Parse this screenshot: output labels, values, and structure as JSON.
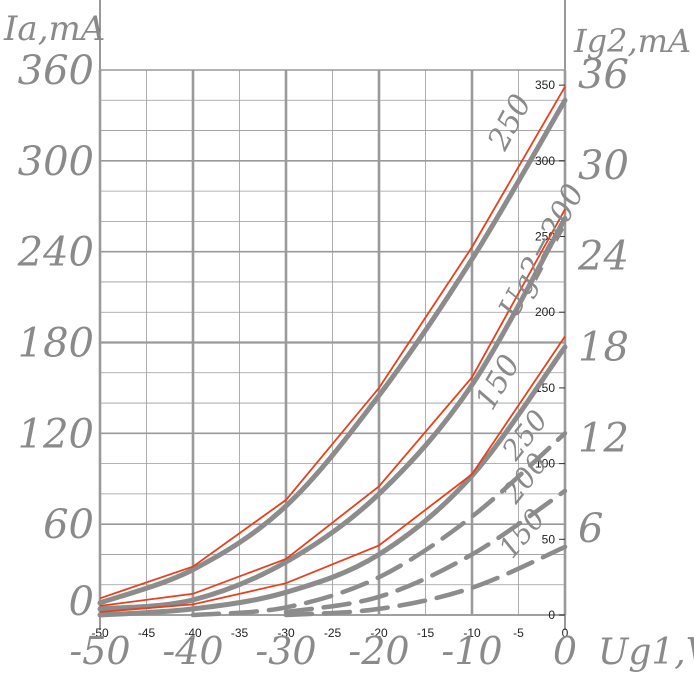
{
  "chart_data": {
    "type": "line",
    "left_axis_title": "Ia,mA",
    "right_axis_title": "Ig2,mA",
    "x_axis_title": "Ug1,V",
    "xlim": [
      -50,
      0
    ],
    "ylim": [
      0,
      360
    ],
    "right_scale_lim": [
      0,
      36
    ],
    "left_ticks": [
      "0",
      "60",
      "120",
      "180",
      "240",
      "300",
      "360"
    ],
    "left_tick_values": [
      0,
      60,
      120,
      180,
      240,
      300,
      360
    ],
    "right_ticks": [
      "6",
      "12",
      "18",
      "24",
      "30",
      "36"
    ],
    "right_tick_values": [
      60,
      120,
      180,
      240,
      300,
      360
    ],
    "inner_right_ticks": [
      "0",
      "50",
      "100",
      "150",
      "200",
      "250",
      "300",
      "350"
    ],
    "inner_right_values": [
      0,
      50,
      100,
      150,
      200,
      250,
      300,
      350
    ],
    "x_small_ticks": [
      "-50",
      "-45",
      "-40",
      "-35",
      "-30",
      "-25",
      "-20",
      "-15",
      "-10",
      "-5",
      "0"
    ],
    "x_small_values": [
      -50,
      -45,
      -40,
      -35,
      -30,
      -25,
      -20,
      -15,
      -10,
      -5,
      0
    ],
    "x_large_ticks": [
      "-50",
      "-40",
      "-30",
      "-20",
      "-10",
      "0"
    ],
    "x_large_values": [
      -50,
      -40,
      -30,
      -20,
      -10,
      0
    ],
    "series": [
      {
        "name": "250",
        "style": "anode-gray",
        "x": [
          -50,
          -40,
          -30,
          -20,
          -10,
          0
        ],
        "y": [
          8,
          30,
          72,
          145,
          235,
          340
        ]
      },
      {
        "name": "Ug2=200",
        "style": "anode-gray",
        "x": [
          -50,
          -40,
          -30,
          -20,
          -10,
          0
        ],
        "y": [
          4,
          10,
          35,
          80,
          152,
          262
        ]
      },
      {
        "name": "150",
        "style": "anode-gray",
        "x": [
          -50,
          -40,
          -30,
          -20,
          -10,
          0
        ],
        "y": [
          0,
          4,
          15,
          40,
          92,
          177
        ]
      },
      {
        "name": "250",
        "style": "screen-dashed",
        "x": [
          -40,
          -30,
          -20,
          -10,
          0
        ],
        "y": [
          0,
          5,
          25,
          65,
          120
        ]
      },
      {
        "name": "200",
        "style": "screen-dashed",
        "x": [
          -30,
          -20,
          -10,
          0
        ],
        "y": [
          2,
          12,
          40,
          82
        ]
      },
      {
        "name": "150",
        "style": "screen-dashed",
        "x": [
          -30,
          -20,
          -10,
          0
        ],
        "y": [
          0,
          4,
          18,
          45
        ]
      },
      {
        "style": "overlay-red",
        "x": [
          -50,
          -40,
          -30,
          -20,
          -10,
          0
        ],
        "y": [
          11,
          32,
          76,
          150,
          243,
          349
        ]
      },
      {
        "style": "overlay-red",
        "x": [
          -50,
          -40,
          -30,
          -20,
          -10,
          0
        ],
        "y": [
          6,
          14,
          37,
          85,
          157,
          268
        ]
      },
      {
        "style": "overlay-red",
        "x": [
          -50,
          -40,
          -30,
          -20,
          -10,
          0
        ],
        "y": [
          2,
          7,
          21,
          46,
          93,
          184
        ]
      }
    ],
    "curve_labels": [
      "250",
      "Ug2=200",
      "150",
      "250",
      "200",
      "150"
    ],
    "colors": {
      "gray": "#8c8c8c",
      "red": "#e8401c",
      "grid": "#9a9a9a"
    }
  }
}
